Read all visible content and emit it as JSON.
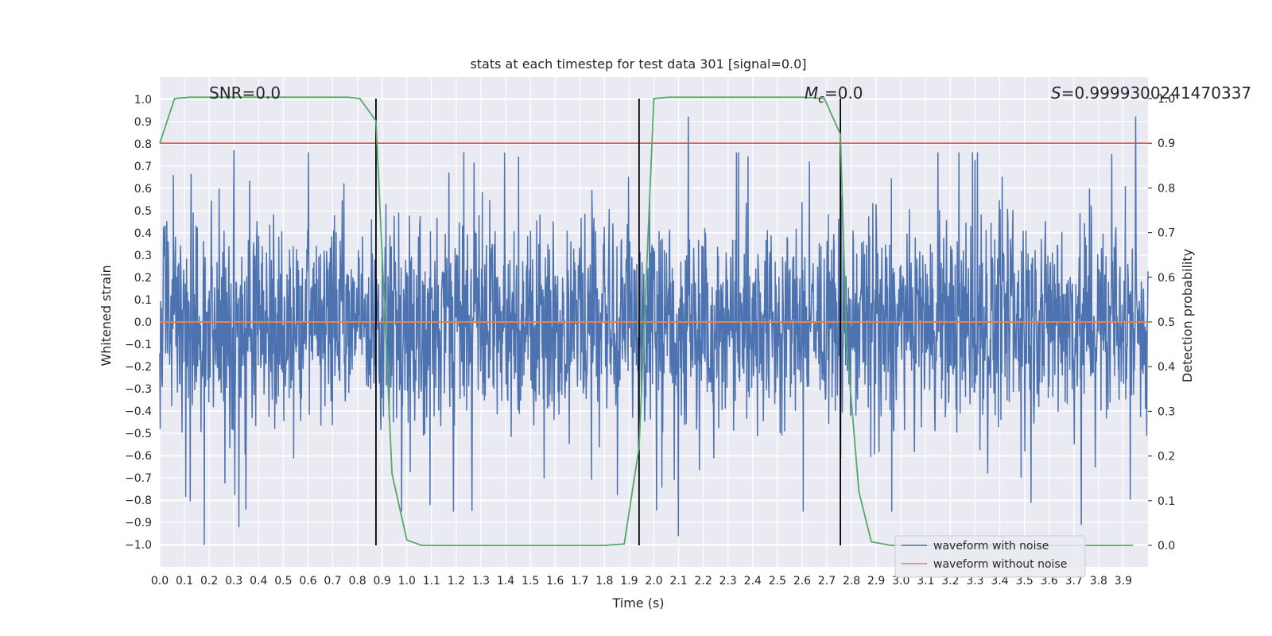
{
  "chart_data": {
    "type": "line",
    "title": "stats at each timestep for test data 301 [signal=0.0]",
    "xlabel": "Time (s)",
    "ylabel": "Whitened strain",
    "y2label": "Detection probability",
    "xlim": [
      0.0,
      4.0
    ],
    "ylim": [
      -1.1,
      1.1
    ],
    "y2lim": [
      -0.048,
      1.048
    ],
    "x_ticks": [
      "0.0",
      "0.1",
      "0.2",
      "0.3",
      "0.4",
      "0.5",
      "0.6",
      "0.7",
      "0.8",
      "0.9",
      "1.0",
      "1.1",
      "1.2",
      "1.3",
      "1.4",
      "1.5",
      "1.6",
      "1.7",
      "1.8",
      "1.9",
      "2.0",
      "2.1",
      "2.2",
      "2.3",
      "2.4",
      "2.5",
      "2.6",
      "2.7",
      "2.8",
      "2.9",
      "3.0",
      "3.1",
      "3.2",
      "3.3",
      "3.4",
      "3.5",
      "3.6",
      "3.7",
      "3.8",
      "3.9"
    ],
    "y_ticks": [
      "1.0",
      "0.9",
      "0.8",
      "0.7",
      "0.6",
      "0.5",
      "0.4",
      "0.3",
      "0.2",
      "0.1",
      "0.0",
      "−0.1",
      "−0.2",
      "−0.3",
      "−0.4",
      "−0.5",
      "−0.6",
      "−0.7",
      "−0.8",
      "−0.9",
      "−1.0"
    ],
    "y2_ticks": [
      "1.0",
      "0.9",
      "0.8",
      "0.7",
      "0.6",
      "0.5",
      "0.4",
      "0.3",
      "0.2",
      "0.1",
      "0.0"
    ],
    "grid": true,
    "annotations": {
      "snr": "SNR=0.0",
      "mc_symbol": "M",
      "mc_sub": "c",
      "mc_value": "=0.0",
      "s_symbol": "S",
      "s_value": "=0.9999300241470337"
    },
    "threshold": 0.9,
    "vertical_lines_x": [
      0.875,
      1.94,
      2.755
    ],
    "series": [
      {
        "name": "waveform with noise",
        "color": "#4c72b0",
        "description": "noise samples spanning about -1.0 to 0.92",
        "peaks": [
          {
            "x": 0.18,
            "y": -1.0
          },
          {
            "x": 0.3,
            "y": 0.77
          },
          {
            "x": 0.32,
            "y": -0.92
          },
          {
            "x": 2.1,
            "y": -0.96
          },
          {
            "x": 2.14,
            "y": 0.92
          },
          {
            "x": 3.73,
            "y": -0.91
          },
          {
            "x": 3.95,
            "y": 0.92
          }
        ]
      },
      {
        "name": "waveform without noise",
        "color": "#dd8452",
        "x": [
          0.0,
          4.0
        ],
        "values": [
          0.0,
          0.0
        ]
      },
      {
        "name": "detection probability",
        "color": "#55a868",
        "axis": "right",
        "x": [
          0.0,
          0.06,
          0.12,
          0.2,
          0.3,
          0.5,
          0.7,
          0.76,
          0.81,
          0.875,
          0.9,
          0.94,
          1.0,
          1.06,
          1.3,
          1.6,
          1.8,
          1.88,
          1.94,
          2.0,
          2.06,
          2.3,
          2.6,
          2.69,
          2.755,
          2.78,
          2.83,
          2.88,
          2.96,
          3.2,
          3.6,
          3.94
        ],
        "values": [
          0.9,
          1.0,
          1.003,
          1.003,
          1.003,
          1.003,
          1.003,
          1.003,
          1.0,
          0.95,
          0.65,
          0.16,
          0.012,
          0.0,
          0.0,
          0.0,
          0.0,
          0.003,
          0.22,
          1.0,
          1.003,
          1.003,
          1.003,
          1.0,
          0.92,
          0.45,
          0.12,
          0.008,
          0.0,
          0.0,
          0.0,
          0.0
        ]
      }
    ],
    "legend": {
      "position": "lower-right",
      "entries": [
        {
          "label": "waveform with noise",
          "color": "#4c72b0"
        },
        {
          "label": "waveform without noise",
          "color": "#dd8452"
        }
      ]
    }
  }
}
